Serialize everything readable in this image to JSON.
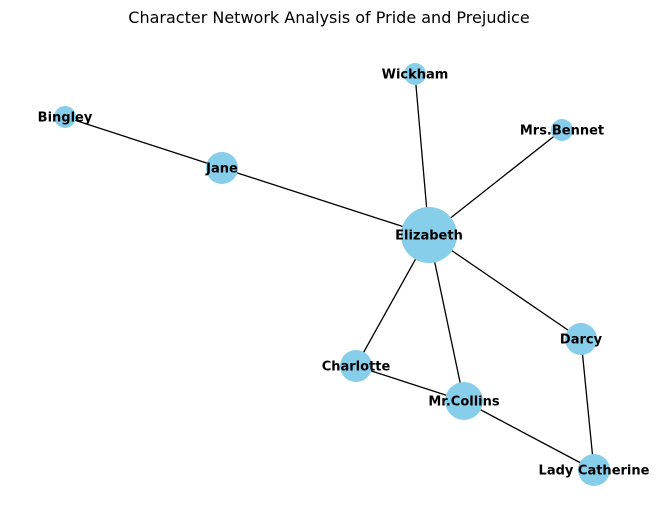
{
  "title": "Character Network Analysis of Pride and Prejudice",
  "node_color": "#87ceeb",
  "edge_color": "#000000",
  "nodes": [
    {
      "id": "elizabeth",
      "label": "Elizabeth",
      "importance": 5
    },
    {
      "id": "jane",
      "label": "Jane",
      "importance": 2
    },
    {
      "id": "bingley",
      "label": "Bingley",
      "importance": 1
    },
    {
      "id": "wickham",
      "label": "Wickham",
      "importance": 1
    },
    {
      "id": "mrsbennet",
      "label": "Mrs.Bennet",
      "importance": 1
    },
    {
      "id": "darcy",
      "label": "Darcy",
      "importance": 2
    },
    {
      "id": "charlotte",
      "label": "Charlotte",
      "importance": 2
    },
    {
      "id": "mrcollins",
      "label": "Mr.Collins",
      "importance": 3
    },
    {
      "id": "ladycatherine",
      "label": "Lady Catherine",
      "importance": 2
    }
  ],
  "edges": [
    {
      "source": "bingley",
      "target": "jane"
    },
    {
      "source": "jane",
      "target": "elizabeth"
    },
    {
      "source": "wickham",
      "target": "elizabeth"
    },
    {
      "source": "mrsbennet",
      "target": "elizabeth"
    },
    {
      "source": "elizabeth",
      "target": "darcy"
    },
    {
      "source": "elizabeth",
      "target": "charlotte"
    },
    {
      "source": "elizabeth",
      "target": "mrcollins"
    },
    {
      "source": "charlotte",
      "target": "mrcollins"
    },
    {
      "source": "mrcollins",
      "target": "ladycatherine"
    },
    {
      "source": "darcy",
      "target": "ladycatherine"
    }
  ]
}
